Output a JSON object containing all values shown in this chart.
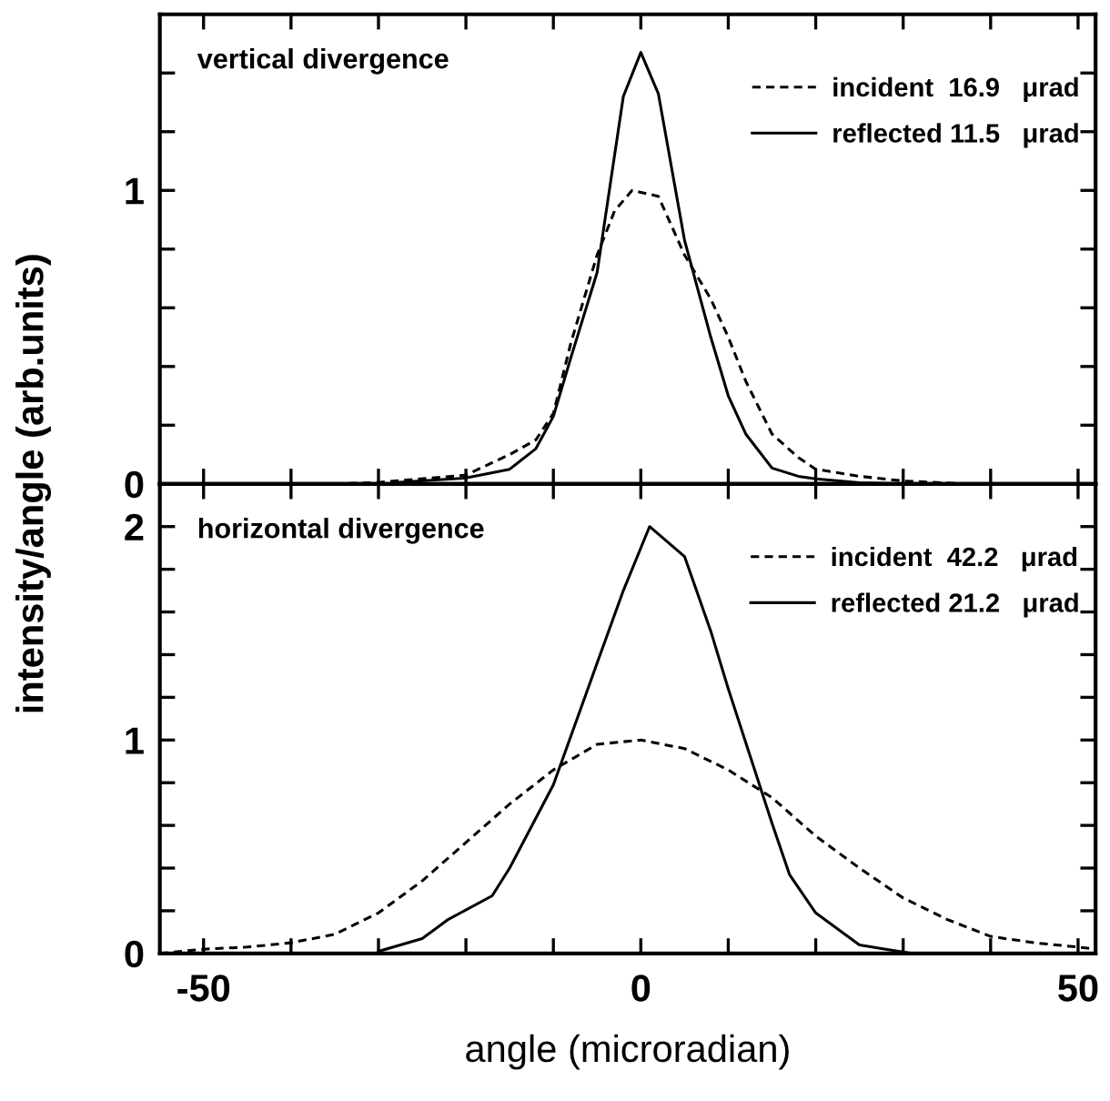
{
  "chart_data": [
    {
      "type": "line",
      "ylabel": "intensity/angle (arb.units)",
      "annotations": [
        "vertical divergence"
      ],
      "legend": "top right",
      "tick_labels": "y",
      "xlim": [
        -55,
        52
      ],
      "xticks": [
        -50,
        {
          "value": -40,
          "label": null
        },
        {
          "value": -30,
          "label": null
        },
        {
          "value": -20,
          "label": null
        },
        {
          "value": -10,
          "label": null
        },
        0,
        {
          "value": 10,
          "label": null
        },
        {
          "value": 20,
          "label": null
        },
        {
          "value": 30,
          "label": null
        },
        {
          "value": 40,
          "label": null
        },
        50
      ],
      "ylim": [
        0,
        1.6
      ],
      "yticks": [
        0,
        {
          "value": 0.2,
          "label": null
        },
        {
          "value": 0.4,
          "label": null
        },
        {
          "value": 0.6,
          "label": null
        },
        {
          "value": 0.8,
          "label": null
        },
        1,
        {
          "value": 1.2,
          "label": null
        },
        {
          "value": 1.4,
          "label": null
        }
      ],
      "series": [
        {
          "name": "incident  16.9   μrad",
          "color": "#000000",
          "line_style": "dashed",
          "x": [
            -35,
            -30,
            -20,
            -15,
            -12,
            -10,
            -8,
            -5,
            -3,
            -1,
            2,
            5,
            8,
            10,
            12,
            15,
            18,
            20,
            25,
            30,
            37
          ],
          "values": [
            0.0,
            0.005,
            0.03,
            0.1,
            0.15,
            0.24,
            0.48,
            0.78,
            0.93,
            1.0,
            0.98,
            0.78,
            0.63,
            0.5,
            0.35,
            0.17,
            0.09,
            0.05,
            0.026,
            0.01,
            0.0
          ]
        },
        {
          "name": "reflected 11.5   μrad",
          "color": "#000000",
          "line_style": "solid",
          "x": [
            -28,
            -20,
            -15,
            -12,
            -10,
            -8,
            -5,
            -2,
            0,
            2,
            5,
            8,
            10,
            12,
            15,
            18,
            20,
            25,
            30
          ],
          "values": [
            0.005,
            0.02,
            0.05,
            0.12,
            0.23,
            0.43,
            0.72,
            1.32,
            1.47,
            1.33,
            0.83,
            0.5,
            0.3,
            0.17,
            0.054,
            0.026,
            0.017,
            0.004,
            0.0
          ]
        }
      ]
    },
    {
      "type": "line",
      "xlabel": "angle (microradian)",
      "annotations": [
        "horizontal divergence"
      ],
      "legend": "top right",
      "xlim": [
        -55,
        52
      ],
      "xticks": [
        -50,
        {
          "value": -40,
          "label": null
        },
        {
          "value": -30,
          "label": null
        },
        {
          "value": -20,
          "label": null
        },
        {
          "value": -10,
          "label": null
        },
        0,
        {
          "value": 10,
          "label": null
        },
        {
          "value": 20,
          "label": null
        },
        {
          "value": 30,
          "label": null
        },
        {
          "value": 40,
          "label": null
        },
        50
      ],
      "ylim": [
        0,
        2.2
      ],
      "yticks": [
        0,
        {
          "value": 0.2,
          "label": null
        },
        {
          "value": 0.4,
          "label": null
        },
        {
          "value": 0.6,
          "label": null
        },
        {
          "value": 0.8,
          "label": null
        },
        1,
        {
          "value": 1.2,
          "label": null
        },
        {
          "value": 1.4,
          "label": null
        },
        {
          "value": 1.6,
          "label": null
        },
        {
          "value": 1.8,
          "label": null
        },
        2
      ],
      "series": [
        {
          "name": "incident  42.2   μrad",
          "color": "#000000",
          "line_style": "dashed",
          "x": [
            -55,
            -50,
            -45,
            -40,
            -35,
            -30,
            -25,
            -20,
            -15,
            -10,
            -5,
            0,
            5,
            10,
            15,
            20,
            25,
            30,
            35,
            40,
            45,
            50,
            52
          ],
          "values": [
            0.0,
            0.02,
            0.03,
            0.05,
            0.09,
            0.19,
            0.34,
            0.52,
            0.7,
            0.86,
            0.98,
            1.0,
            0.96,
            0.86,
            0.73,
            0.55,
            0.4,
            0.26,
            0.16,
            0.08,
            0.05,
            0.03,
            0.02
          ]
        },
        {
          "name": "reflected 21.2   μrad",
          "color": "#000000",
          "line_style": "solid",
          "x": [
            -30,
            -25,
            -22,
            -17,
            -15,
            -10,
            -5,
            -2,
            1,
            5,
            8,
            10,
            15,
            17,
            20,
            25,
            28,
            31
          ],
          "values": [
            0.01,
            0.07,
            0.16,
            0.27,
            0.4,
            0.79,
            1.36,
            1.7,
            2.0,
            1.86,
            1.51,
            1.24,
            0.61,
            0.37,
            0.19,
            0.04,
            0.02,
            0.0
          ]
        }
      ]
    }
  ]
}
